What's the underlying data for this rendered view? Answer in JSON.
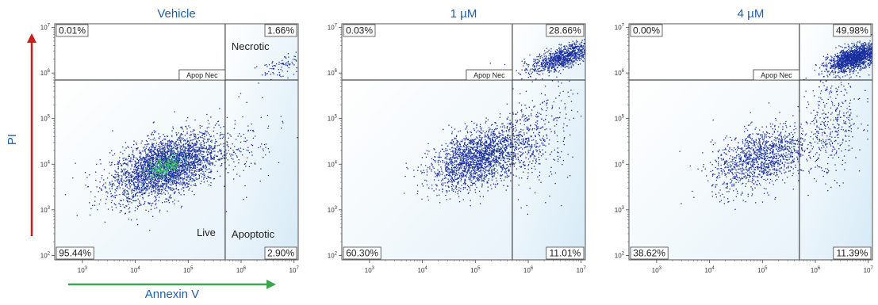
{
  "figure": {
    "y_axis_title": "PI",
    "x_axis_title": "Annexin V",
    "axis_arrow_colors": {
      "y": "#cc1f1f",
      "x": "#3aa84a"
    },
    "title_color": "#1f5fa8",
    "dot_color": "#1a2f9e",
    "dense_color": "#3cbf6a",
    "quadrant_fill": "#d6eaf6"
  },
  "chart_data": [
    {
      "type": "scatter",
      "title": "Vehicle",
      "x_scale": "log",
      "y_scale": "log",
      "xlim": [
        300,
        12000000
      ],
      "ylim": [
        80,
        12000000
      ],
      "x_ticks": [
        "10^3",
        "10^4",
        "10^5",
        "10^6",
        "10^7"
      ],
      "y_ticks": [
        "10^2",
        "10^3",
        "10^4",
        "10^5",
        "10^6",
        "10^7"
      ],
      "gate_x": 500000,
      "gate_y": 700000,
      "gate_label": "Apop Nec",
      "quadrant_percentages": {
        "top_left": "0.01%",
        "top_right": "1.66%",
        "bottom_left": "95.44%",
        "bottom_right": "2.90%"
      },
      "region_labels": {
        "necrotic": "Necrotic",
        "live": "Live",
        "apoptotic": "Apoptotic"
      },
      "populations": [
        {
          "name": "live",
          "center_log": [
            4.55,
            3.95
          ],
          "spread_log": [
            0.5,
            0.32
          ],
          "share": 0.9544,
          "dense_core": true
        },
        {
          "name": "apoptotic",
          "center_log": [
            5.9,
            4.3
          ],
          "spread_log": [
            0.45,
            0.45
          ],
          "share": 0.029
        },
        {
          "name": "necrotic",
          "center_log": [
            6.75,
            6.15
          ],
          "spread_log": [
            0.22,
            0.12
          ],
          "share": 0.0166
        }
      ]
    },
    {
      "type": "scatter",
      "title": "1 µM",
      "x_scale": "log",
      "y_scale": "log",
      "xlim": [
        300,
        12000000
      ],
      "ylim": [
        80,
        12000000
      ],
      "x_ticks": [
        "10^3",
        "10^4",
        "10^5",
        "10^6",
        "10^7"
      ],
      "y_ticks": [
        "10^2",
        "10^3",
        "10^4",
        "10^5",
        "10^6",
        "10^7"
      ],
      "gate_x": 500000,
      "gate_y": 700000,
      "gate_label": "Apop Nec",
      "quadrant_percentages": {
        "top_left": "0.03%",
        "top_right": "28.66%",
        "bottom_left": "60.30%",
        "bottom_right": "11.01%"
      },
      "region_labels": {},
      "populations": [
        {
          "name": "live",
          "center_log": [
            5.05,
            4.15
          ],
          "spread_log": [
            0.45,
            0.3
          ],
          "share": 0.603
        },
        {
          "name": "apoptotic",
          "center_log": [
            6.1,
            4.6
          ],
          "spread_log": [
            0.35,
            0.6
          ],
          "share": 0.1101
        },
        {
          "name": "necrotic",
          "center_log": [
            6.65,
            6.35
          ],
          "spread_log": [
            0.3,
            0.12
          ],
          "share": 0.2866
        }
      ]
    },
    {
      "type": "scatter",
      "title": "4 µM",
      "x_scale": "log",
      "y_scale": "log",
      "xlim": [
        300,
        12000000
      ],
      "ylim": [
        80,
        12000000
      ],
      "x_ticks": [
        "10^3",
        "10^4",
        "10^5",
        "10^6",
        "10^7"
      ],
      "y_ticks": [
        "10^2",
        "10^3",
        "10^4",
        "10^5",
        "10^6",
        "10^7"
      ],
      "gate_x": 500000,
      "gate_y": 700000,
      "gate_label": "Apop Nec",
      "quadrant_percentages": {
        "top_left": "0.00%",
        "top_right": "49.98%",
        "bottom_left": "38.62%",
        "bottom_right": "11.39%"
      },
      "region_labels": {},
      "populations": [
        {
          "name": "live",
          "center_log": [
            4.95,
            4.15
          ],
          "spread_log": [
            0.45,
            0.32
          ],
          "share": 0.3862
        },
        {
          "name": "apoptotic",
          "center_log": [
            6.3,
            4.9
          ],
          "spread_log": [
            0.3,
            0.6
          ],
          "share": 0.1139
        },
        {
          "name": "necrotic",
          "center_log": [
            6.75,
            6.35
          ],
          "spread_log": [
            0.25,
            0.12
          ],
          "share": 0.4998
        }
      ]
    }
  ]
}
